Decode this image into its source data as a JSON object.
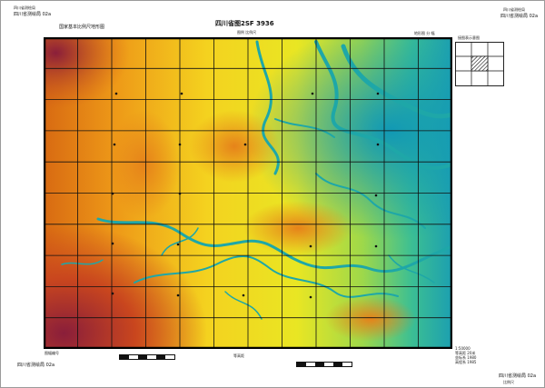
{
  "sheet": {
    "title": "四川省图2SF 3936",
    "top_left_tiny": "四川省测绘局",
    "top_left_sub": "国家基本比例尺地形图",
    "top_center_sub": "图例 比例尺",
    "top_right_tiny": "四川省测绘局",
    "top_right_sub": "四川省测绘局 02a",
    "right_header": "地形图 分 幅",
    "bottom_left_label": "四川省测绘局 02a",
    "bottom_left_tiny": "图幅编号",
    "bottom_right_label": "四川省测绘局 02a",
    "bottom_right_tiny": "比例尺",
    "bottom_center": "等高距",
    "info_lines": [
      "1:50000",
      "等高距 20米",
      "坐标系 1980",
      "高程系 1985"
    ]
  },
  "legend": {
    "title": "接图表示意图",
    "cells": [
      "",
      "",
      "",
      "",
      "",
      "",
      "",
      "",
      ""
    ]
  },
  "map": {
    "grid_cols": 12,
    "grid_rows": 10,
    "river_color": "#1ea7a8",
    "low_color": "#1aa6a6",
    "mid_color": "#f2e41e",
    "high_color": "#e57e10",
    "peak_color": "#8a1e3a"
  }
}
